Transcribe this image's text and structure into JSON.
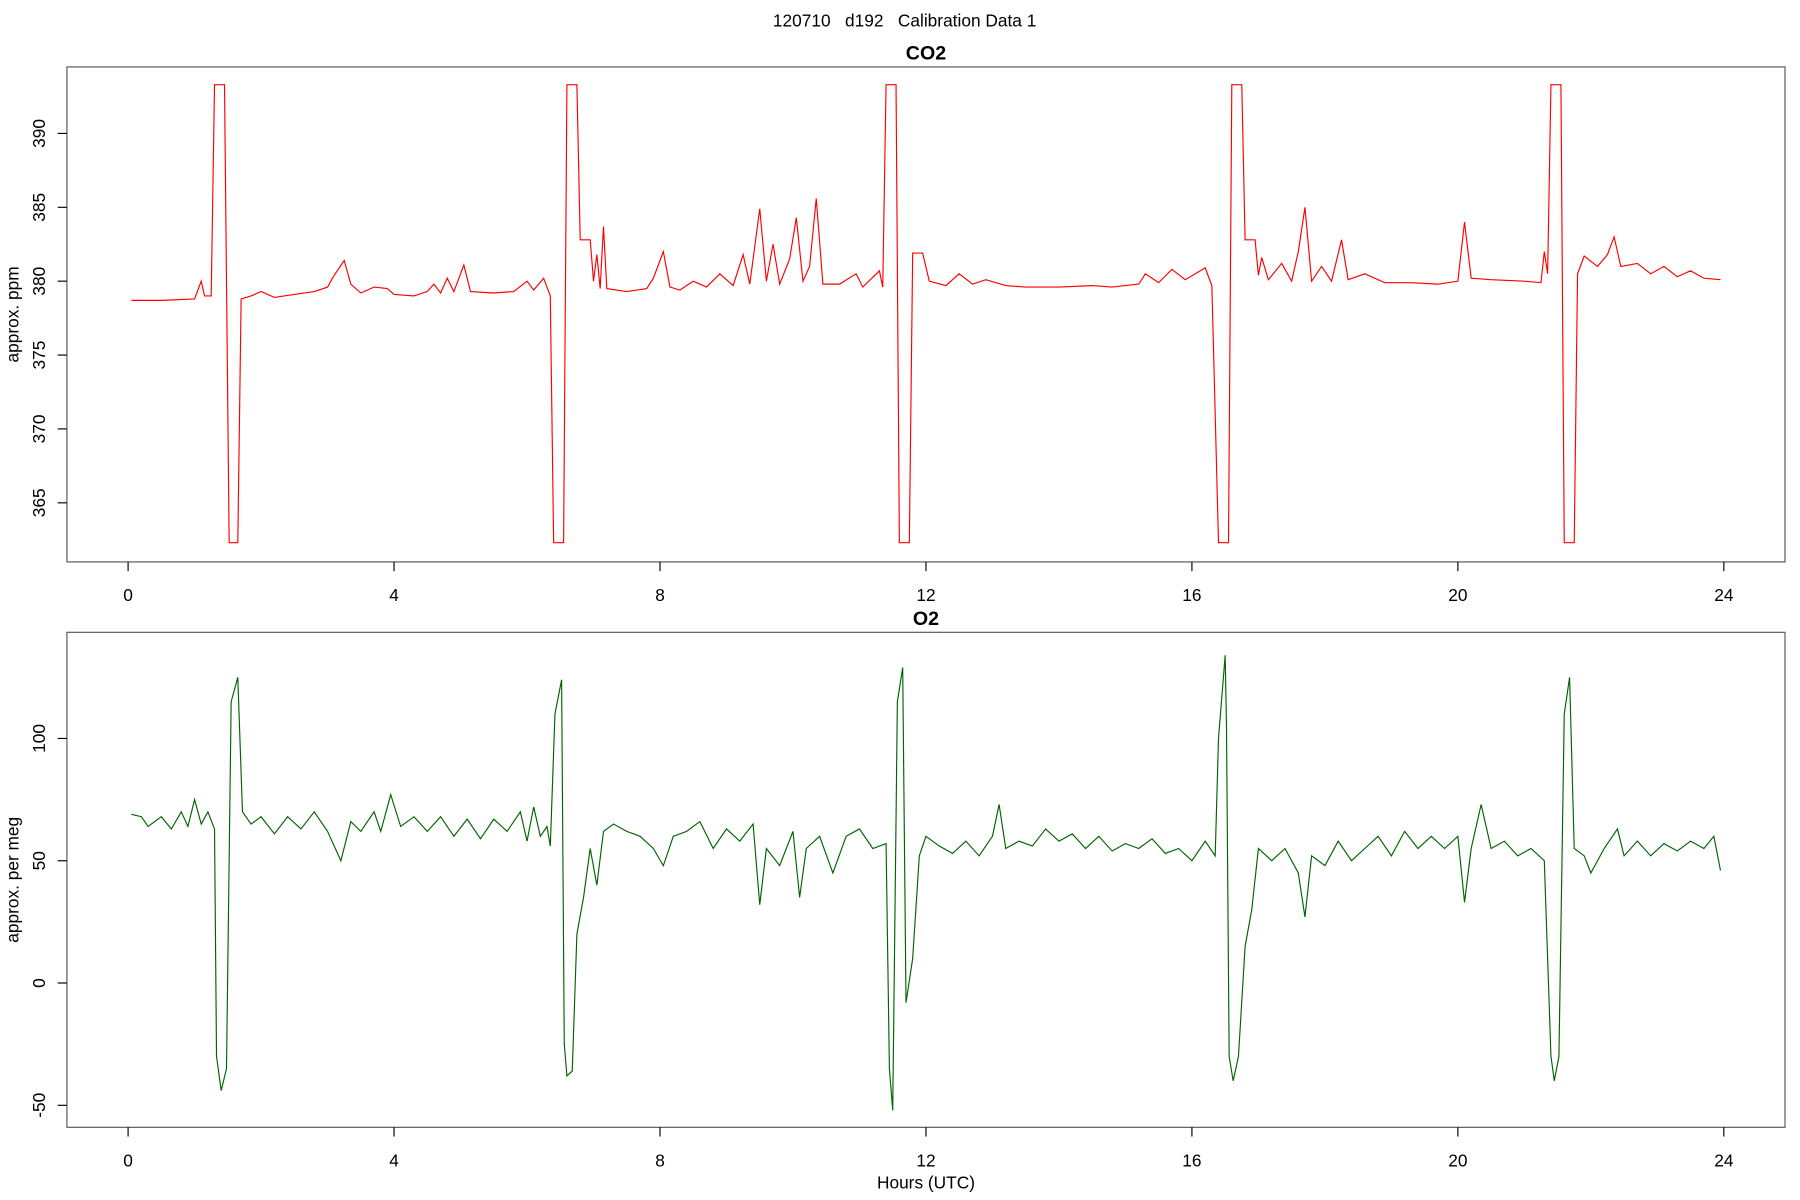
{
  "title": "120710   d192   Calibration Data 1",
  "chart_data": [
    {
      "type": "line",
      "title": "CO2",
      "ylabel": "approx. ppm",
      "color": "#ff0000",
      "xlim": [
        -0.92,
        24.92
      ],
      "xticks": [
        0,
        4,
        8,
        12,
        16,
        20,
        24
      ],
      "ylim": [
        361,
        394.5
      ],
      "yticks": [
        365,
        370,
        375,
        380,
        385,
        390
      ],
      "x": [
        0.05,
        0.5,
        1.0,
        1.1,
        1.15,
        1.25,
        1.3,
        1.45,
        1.52,
        1.65,
        1.7,
        1.85,
        2.0,
        2.2,
        2.5,
        2.8,
        3.0,
        3.1,
        3.25,
        3.35,
        3.5,
        3.7,
        3.9,
        4.0,
        4.3,
        4.5,
        4.6,
        4.7,
        4.8,
        4.9,
        5.05,
        5.15,
        5.5,
        5.8,
        6.0,
        6.1,
        6.25,
        6.35,
        6.4,
        6.55,
        6.6,
        6.75,
        6.8,
        6.95,
        7.0,
        7.05,
        7.1,
        7.15,
        7.2,
        7.5,
        7.8,
        7.9,
        8.05,
        8.15,
        8.3,
        8.5,
        8.7,
        8.9,
        9.1,
        9.25,
        9.35,
        9.5,
        9.6,
        9.7,
        9.8,
        9.95,
        10.05,
        10.15,
        10.25,
        10.35,
        10.45,
        10.7,
        10.95,
        11.05,
        11.3,
        11.35,
        11.4,
        11.55,
        11.6,
        11.75,
        11.8,
        11.95,
        12.05,
        12.3,
        12.5,
        12.7,
        12.9,
        13.2,
        13.5,
        14.0,
        14.5,
        14.8,
        15.2,
        15.3,
        15.5,
        15.7,
        15.9,
        16.2,
        16.3,
        16.4,
        16.55,
        16.6,
        16.75,
        16.8,
        16.95,
        17.0,
        17.05,
        17.15,
        17.35,
        17.5,
        17.6,
        17.7,
        17.8,
        17.95,
        18.1,
        18.25,
        18.35,
        18.6,
        18.9,
        19.3,
        19.7,
        20.0,
        20.1,
        20.2,
        20.5,
        21.0,
        21.25,
        21.3,
        21.35,
        21.4,
        21.55,
        21.6,
        21.75,
        21.8,
        21.9,
        22.1,
        22.25,
        22.35,
        22.45,
        22.7,
        22.9,
        23.1,
        23.3,
        23.5,
        23.7,
        23.95
      ],
      "values": [
        378.7,
        378.7,
        378.8,
        380.0,
        379.0,
        379.0,
        393.3,
        393.3,
        362.3,
        362.3,
        378.8,
        379.0,
        379.3,
        378.9,
        379.1,
        379.3,
        379.6,
        380.4,
        381.4,
        379.8,
        379.2,
        379.6,
        379.5,
        379.1,
        379.0,
        379.3,
        379.8,
        379.2,
        380.2,
        379.3,
        381.1,
        379.3,
        379.2,
        379.3,
        380.0,
        379.4,
        380.2,
        379.0,
        362.3,
        362.3,
        393.3,
        393.3,
        382.8,
        382.8,
        380.0,
        381.8,
        379.5,
        383.7,
        379.5,
        379.3,
        379.5,
        380.2,
        382.0,
        379.6,
        379.4,
        380.0,
        379.6,
        380.5,
        379.7,
        381.8,
        379.8,
        384.9,
        380.0,
        382.5,
        379.8,
        381.5,
        384.3,
        380.0,
        381.0,
        385.6,
        379.8,
        379.8,
        380.5,
        379.6,
        380.7,
        379.6,
        393.3,
        393.3,
        362.3,
        362.3,
        381.9,
        381.9,
        380.0,
        379.7,
        380.5,
        379.8,
        380.1,
        379.7,
        379.6,
        379.6,
        379.7,
        379.6,
        379.8,
        380.5,
        379.9,
        380.8,
        380.1,
        380.9,
        379.7,
        362.3,
        362.3,
        393.3,
        393.3,
        382.8,
        382.8,
        380.4,
        381.6,
        380.1,
        381.2,
        380.0,
        382.0,
        385.0,
        380.0,
        381.0,
        380.0,
        382.8,
        380.1,
        380.5,
        379.9,
        379.9,
        379.8,
        380.0,
        384.0,
        380.2,
        380.1,
        380.0,
        379.9,
        382.0,
        380.5,
        393.3,
        393.3,
        362.3,
        362.3,
        380.5,
        381.7,
        381.0,
        381.8,
        383.0,
        381.0,
        381.2,
        380.5,
        381.0,
        380.3,
        380.7,
        380.2,
        380.1
      ]
    },
    {
      "type": "line",
      "title": "O2",
      "ylabel": "approx. per meg",
      "xlabel": "Hours (UTC)",
      "color": "#006400",
      "xlim": [
        -0.92,
        24.92
      ],
      "xticks": [
        0,
        4,
        8,
        12,
        16,
        20,
        24
      ],
      "ylim": [
        -59,
        143.4
      ],
      "yticks": [
        -50,
        0,
        50,
        100
      ],
      "x": [
        0.05,
        0.2,
        0.3,
        0.5,
        0.65,
        0.8,
        0.9,
        1.0,
        1.1,
        1.2,
        1.3,
        1.33,
        1.4,
        1.48,
        1.55,
        1.65,
        1.72,
        1.85,
        2.0,
        2.2,
        2.4,
        2.6,
        2.8,
        3.0,
        3.2,
        3.35,
        3.5,
        3.7,
        3.8,
        3.95,
        4.1,
        4.3,
        4.5,
        4.7,
        4.9,
        5.1,
        5.3,
        5.5,
        5.7,
        5.9,
        6.0,
        6.1,
        6.2,
        6.3,
        6.35,
        6.42,
        6.52,
        6.56,
        6.6,
        6.68,
        6.75,
        6.85,
        6.95,
        7.05,
        7.15,
        7.3,
        7.5,
        7.7,
        7.9,
        8.05,
        8.2,
        8.4,
        8.6,
        8.8,
        9.0,
        9.2,
        9.4,
        9.5,
        9.6,
        9.8,
        10.0,
        10.1,
        10.2,
        10.4,
        10.6,
        10.8,
        11.0,
        11.2,
        11.4,
        11.45,
        11.5,
        11.57,
        11.65,
        11.7,
        11.8,
        11.9,
        12.0,
        12.2,
        12.4,
        12.6,
        12.8,
        13.0,
        13.1,
        13.2,
        13.4,
        13.6,
        13.8,
        14.0,
        14.2,
        14.4,
        14.6,
        14.8,
        15.0,
        15.2,
        15.4,
        15.6,
        15.8,
        16.0,
        16.2,
        16.35,
        16.4,
        16.5,
        16.52,
        16.56,
        16.62,
        16.7,
        16.8,
        16.9,
        17.0,
        17.2,
        17.4,
        17.6,
        17.7,
        17.8,
        18.0,
        18.2,
        18.4,
        18.6,
        18.8,
        19.0,
        19.2,
        19.4,
        19.6,
        19.8,
        20.0,
        20.1,
        20.2,
        20.35,
        20.5,
        20.7,
        20.9,
        21.1,
        21.3,
        21.4,
        21.45,
        21.52,
        21.6,
        21.68,
        21.75,
        21.9,
        22.0,
        22.2,
        22.4,
        22.5,
        22.7,
        22.9,
        23.1,
        23.3,
        23.5,
        23.7,
        23.85,
        23.95
      ],
      "values": [
        69,
        68,
        64,
        68,
        63,
        70,
        64,
        75,
        65,
        70,
        63,
        -30,
        -44,
        -35,
        115,
        125,
        70,
        65,
        68,
        61,
        68,
        63,
        70,
        62,
        50,
        66,
        62,
        70,
        62,
        77,
        64,
        68,
        62,
        68,
        60,
        67,
        59,
        67,
        62,
        70,
        58,
        72,
        60,
        64,
        56,
        110,
        124,
        -25,
        -38,
        -36,
        20,
        35,
        55,
        40,
        62,
        65,
        62,
        60,
        55,
        48,
        60,
        62,
        66,
        55,
        63,
        58,
        65,
        32,
        55,
        48,
        62,
        35,
        55,
        60,
        45,
        60,
        63,
        55,
        57,
        -35,
        -52,
        115,
        129,
        -8,
        10,
        52,
        60,
        56,
        53,
        58,
        52,
        60,
        73,
        55,
        58,
        56,
        63,
        58,
        61,
        55,
        60,
        54,
        57,
        55,
        59,
        53,
        55,
        50,
        58,
        52,
        100,
        134,
        105,
        -30,
        -40,
        -30,
        15,
        30,
        55,
        50,
        55,
        45,
        27,
        52,
        48,
        58,
        50,
        55,
        60,
        52,
        62,
        55,
        60,
        55,
        60,
        33,
        55,
        73,
        55,
        58,
        52,
        55,
        50,
        -30,
        -40,
        -30,
        110,
        125,
        55,
        52,
        45,
        55,
        63,
        52,
        58,
        52,
        57,
        54,
        58,
        55,
        60,
        46
      ]
    }
  ]
}
